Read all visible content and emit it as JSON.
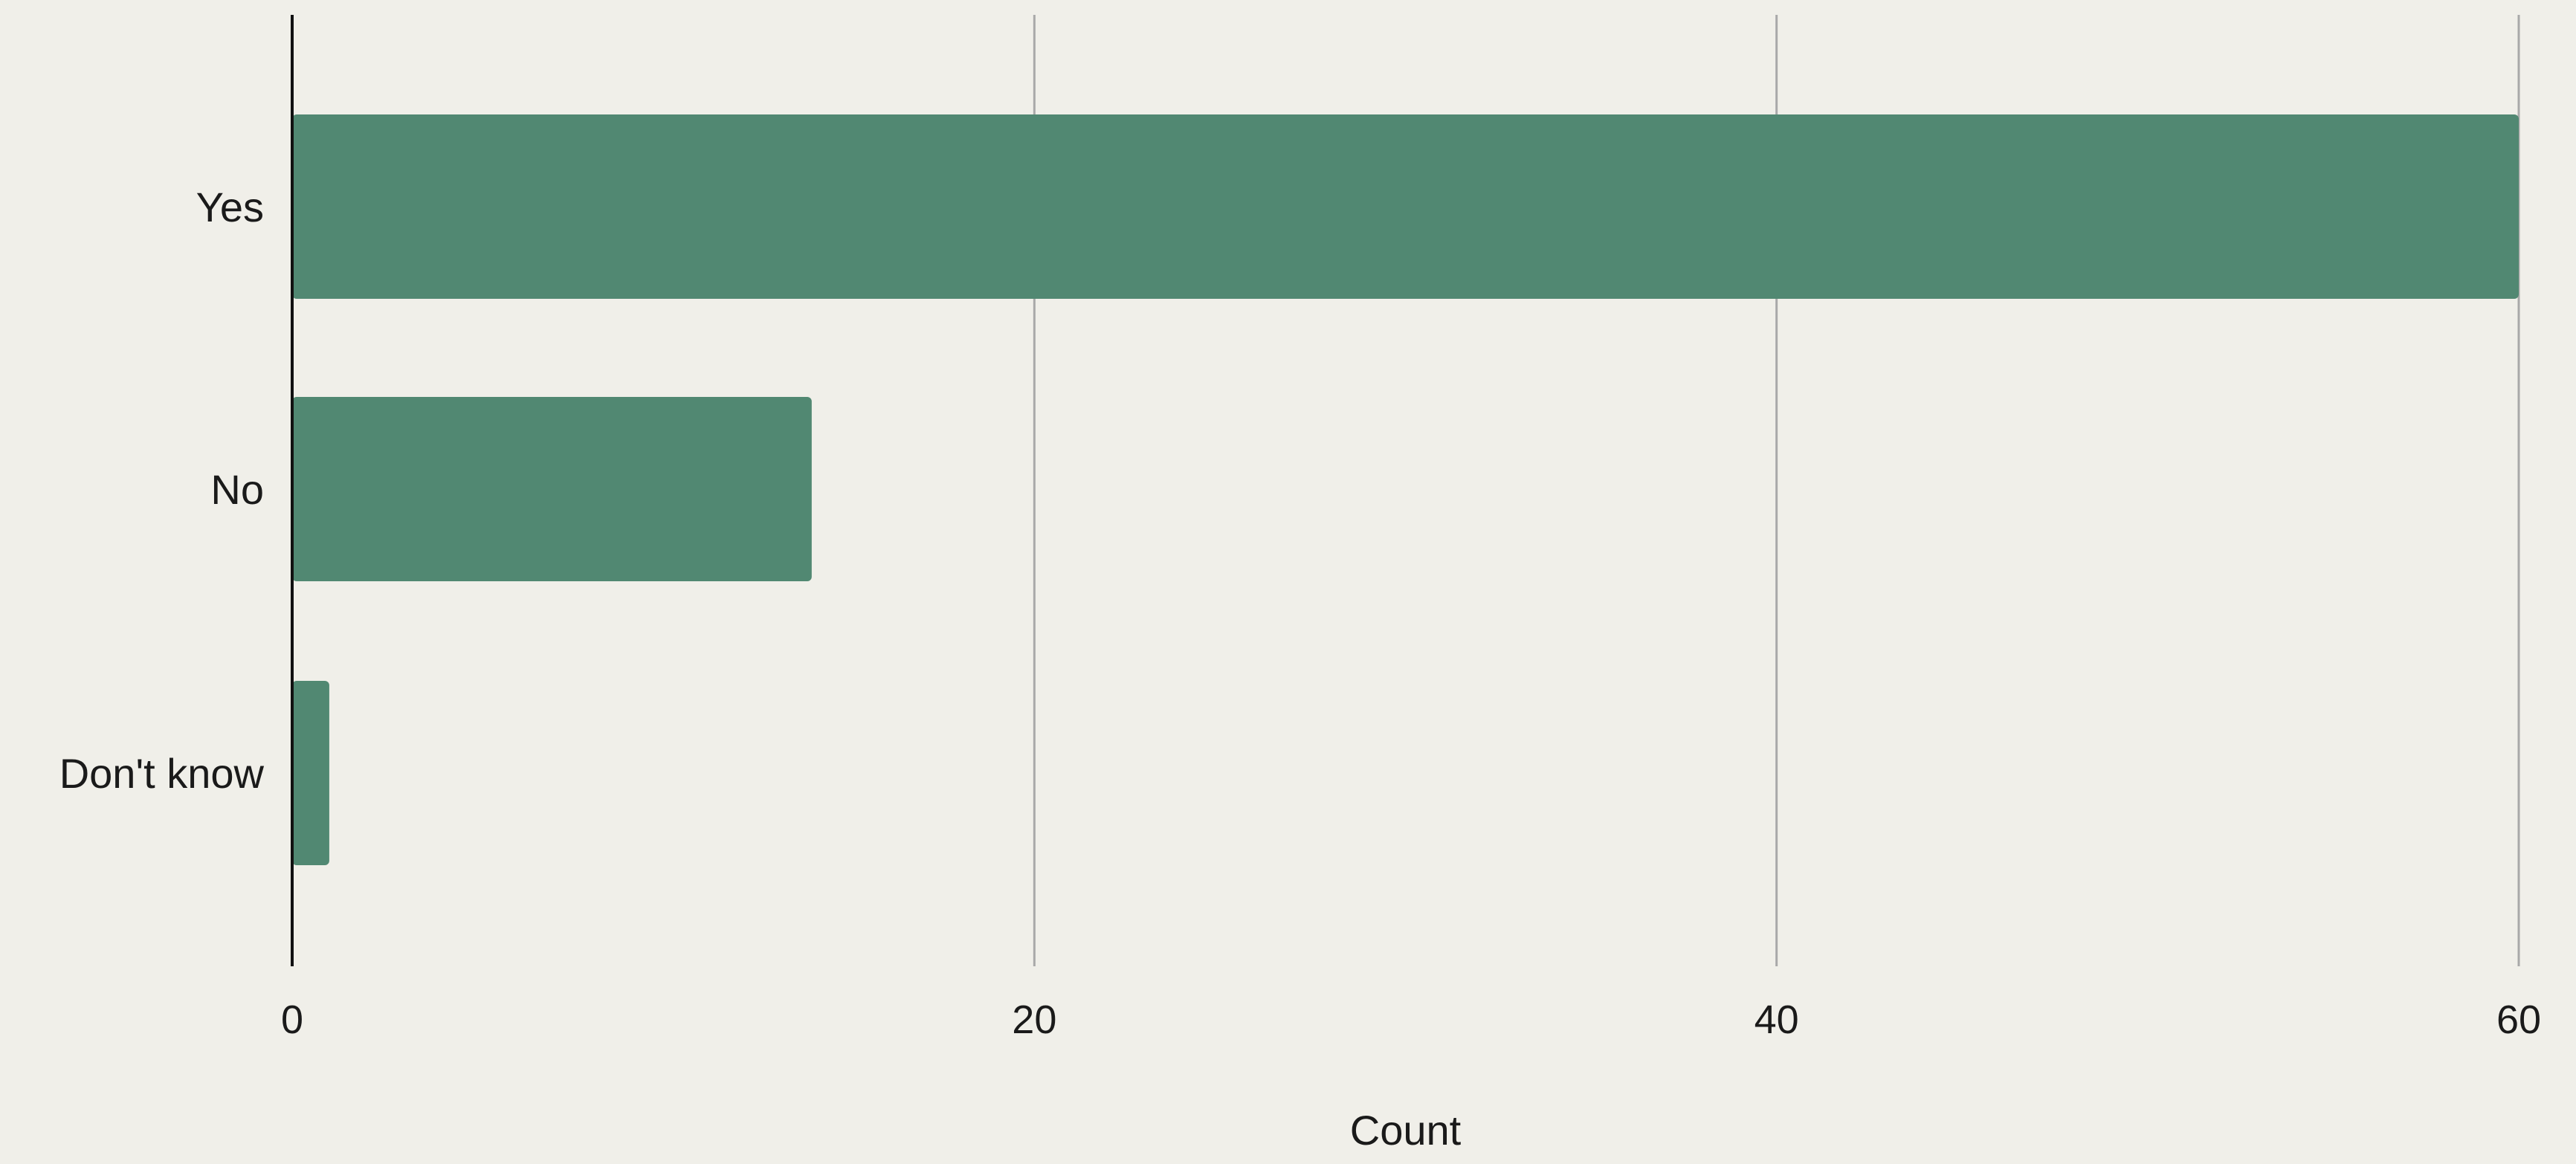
{
  "chart_data": {
    "type": "bar",
    "orientation": "horizontal",
    "categories": [
      "Yes",
      "No",
      "Don't know"
    ],
    "values": [
      60,
      14,
      1
    ],
    "xlabel": "Count",
    "ylabel": "",
    "xlim": [
      0,
      60
    ],
    "xticks": [
      0,
      20,
      40,
      60
    ],
    "xtick_labels": [
      "0",
      "20",
      "40",
      "60"
    ],
    "grid": "vertical",
    "legend": "none",
    "colors": {
      "bar": "#518872",
      "background": "#f0efe9",
      "grid": "#a9a9a9",
      "axis": "#111111",
      "text": "#1a1a1a"
    }
  }
}
